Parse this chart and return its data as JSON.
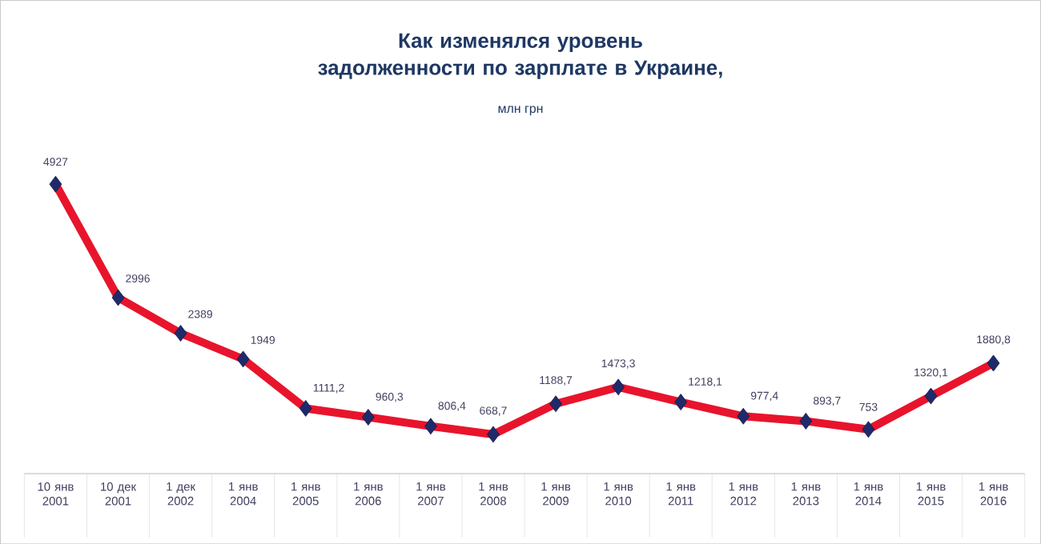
{
  "chart_data": {
    "type": "line",
    "title": "Как изменялся уровень задолженности по зарплате в Украине,",
    "subtitle": "млн грн",
    "categories": [
      "10 янв 2001",
      "10 дек 2001",
      "1 дек 2002",
      "1 янв 2004",
      "1 янв 2005",
      "1 янв 2006",
      "1 янв 2007",
      "1 янв 2008",
      "1 янв 2009",
      "1 янв 2010",
      "1 янв 2011",
      "1 янв 2012",
      "1 янв 2013",
      "1 янв 2014",
      "1 янв 2015",
      "1 янв 2016"
    ],
    "series": [
      {
        "color": "#e8142c",
        "colors": [
          "#1f2a6b",
          "#1f2a6b",
          "#1f2a6b",
          "#1f2a6b",
          "#1f2a6b",
          "#1f2a6b",
          "#1f2a6b",
          "#1f2a6b",
          "#1f2a6b",
          "#1f2a6b",
          "#1f2a6b",
          "#1f2a6b",
          "#1f2a6b",
          "#1f2a6b",
          "#1f2a6b",
          "#1f2a6b"
        ],
        "values": [
          4927,
          2996,
          2389,
          1949,
          1111.2,
          960.3,
          806.4,
          668.7,
          1188.7,
          1473.3,
          1218.1,
          977.4,
          893.7,
          753,
          1320.1,
          1880.8
        ],
        "value_labels": [
          "4927",
          "2996",
          "2389",
          "1949",
          "1111,2",
          "960,3",
          "806,4",
          "668,7",
          "1188,7",
          "1473,3",
          "1218,1",
          "977,4",
          "893,7",
          "753",
          "1320,1",
          "1880,8"
        ]
      }
    ],
    "marker": "diamond",
    "line_style": "solid",
    "grid": false
  }
}
